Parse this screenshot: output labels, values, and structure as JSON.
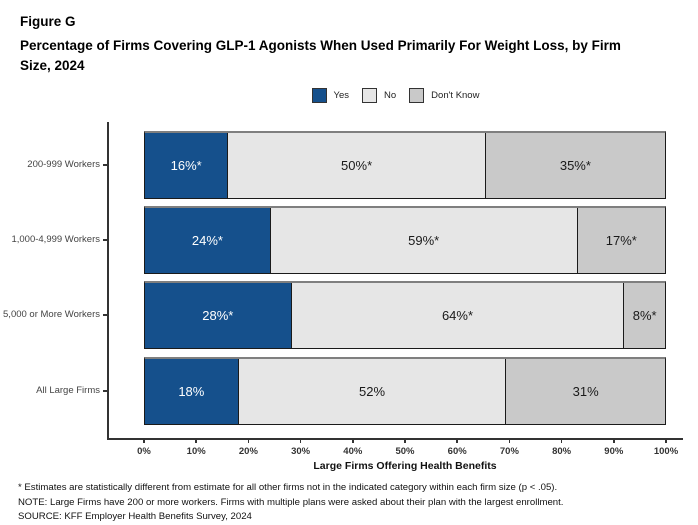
{
  "figure_label": "Figure G",
  "title_line1": "Percentage of Firms Covering GLP-1 Agonists When Used Primarily For Weight Loss, by Firm",
  "title_line2": "Size, 2024",
  "colors": {
    "yes_blue": "#15508c",
    "no_light_gray": "#e6e6e6",
    "dont_know_gray": "#c9c9c9",
    "bar_border": "#1a1a1a",
    "bar_top_line": "#7f7f7f",
    "axis": "#333333"
  },
  "chart_data": {
    "type": "bar",
    "stacked": true,
    "orientation": "horizontal",
    "title": "Percentage of Firms Covering GLP-1 Agonists When Used Primarily For Weight Loss, by Firm Size, 2024",
    "categories": [
      "200-999 Workers",
      "1,000-4,999 Workers",
      "5,000 or More Workers",
      "All Large Firms"
    ],
    "series": [
      {
        "name": "Yes",
        "color": "#15508c",
        "text_color": "#ffffff",
        "values": [
          16,
          24,
          28,
          18
        ],
        "labels": [
          "16%*",
          "24%*",
          "28%*",
          "18%"
        ]
      },
      {
        "name": "No",
        "color": "#e6e6e6",
        "text_color": "#1a1a1a",
        "values": [
          50,
          59,
          64,
          52
        ],
        "labels": [
          "50%*",
          "59%*",
          "64%*",
          "52%"
        ]
      },
      {
        "name": "Don't Know",
        "color": "#c9c9c9",
        "text_color": "#1a1a1a",
        "values": [
          35,
          17,
          8,
          31
        ],
        "labels": [
          "35%*",
          "17%*",
          "8%*",
          "31%"
        ]
      }
    ],
    "xlabel": "Large Firms Offering Health Benefits",
    "x_ticks": [
      "0%",
      "10%",
      "20%",
      "30%",
      "40%",
      "50%",
      "60%",
      "70%",
      "80%",
      "90%",
      "100%"
    ],
    "xlim": [
      0,
      100
    ],
    "grid": false,
    "legend_position": "top-center"
  },
  "footnotes": [
    "* Estimates are statistically different from estimate for all other firms not in the indicated category within each firm size (p < .05).",
    "NOTE: Large Firms have 200 or more workers.  Firms with multiple plans were asked about their plan with the largest enrollment.",
    "SOURCE: KFF Employer Health Benefits Survey, 2024"
  ]
}
